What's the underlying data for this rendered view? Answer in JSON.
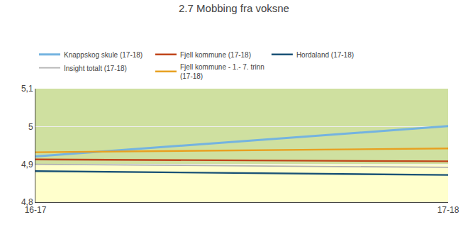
{
  "chart_data": {
    "type": "line",
    "title": "2.7 Mobbing fra voksne",
    "categories": [
      "16-17",
      "17-18"
    ],
    "series": [
      {
        "name": "Knappskog skule (17-18)",
        "color": "#74b3e0",
        "values": [
          4.921,
          5.001
        ]
      },
      {
        "name": "Fjell kommune (17-18)",
        "color": "#c0451a",
        "values": [
          4.913,
          4.908
        ]
      },
      {
        "name": "Hordaland (17-18)",
        "color": "#1a5276",
        "values": [
          4.882,
          4.872
        ]
      },
      {
        "name": "Insight totalt (17-18)",
        "color": "#b0b0b0",
        "values": [
          4.9,
          4.892
        ]
      },
      {
        "name": "Fjell kommune - 1.- 7. trinn\n(17-18)",
        "color": "#e8a020",
        "values": [
          4.932,
          4.942
        ]
      }
    ],
    "ylim": [
      4.8,
      5.1
    ],
    "yticks": [
      {
        "value": 4.8,
        "label": "4,8"
      },
      {
        "value": 4.9,
        "label": "4,9"
      },
      5,
      {
        "value": 5.1,
        "label": "5,1"
      }
    ],
    "bands": [
      {
        "from": 4.9,
        "to": 5.1,
        "color": "#cfe0a0"
      },
      {
        "from": 4.8,
        "to": 4.9,
        "color": "#ffffcc"
      }
    ],
    "grid": true,
    "legend": "top"
  }
}
